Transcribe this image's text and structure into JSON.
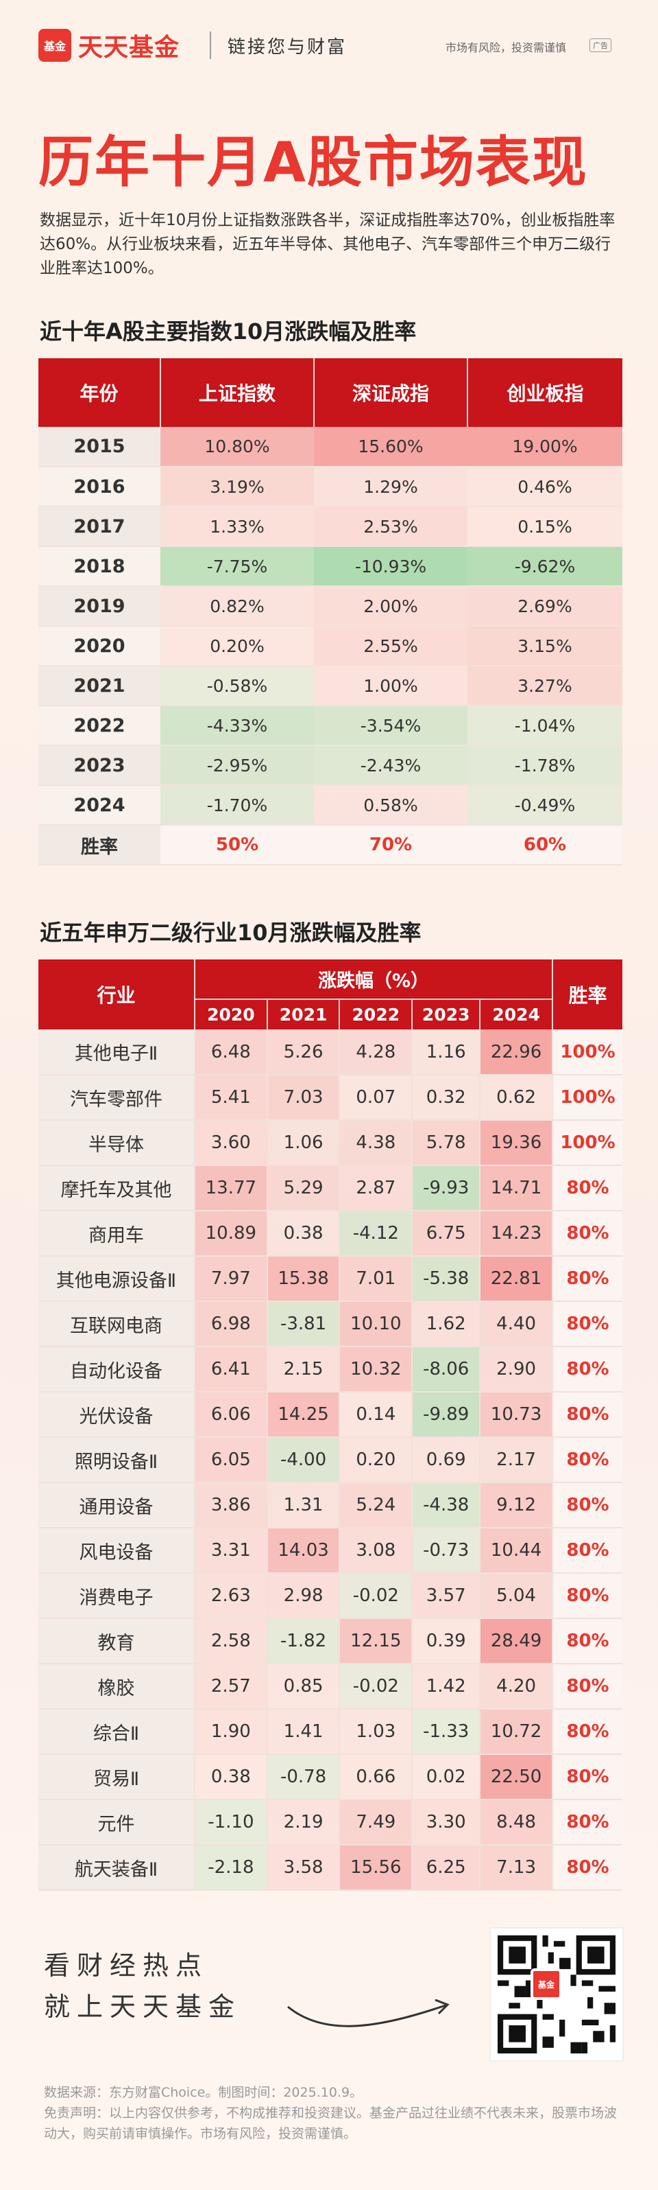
{
  "header": {
    "logo_badge": "基金",
    "logo_text": "天天基金",
    "slogan": "链接您与财富",
    "risk_text": "市场有风险，投资需谨慎",
    "ad_tag": "广告"
  },
  "title": "历年十月A股市场表现",
  "intro": "数据显示，近十年10月份上证指数涨跌各半，深证成指胜率达70%，创业板指胜率达60%。从行业板块来看，近五年半导体、其他电子、汽车零部件三个申万二级行业胜率达100%。",
  "table1": {
    "title": "近十年A股主要指数10月涨跌幅及胜率",
    "headers": [
      "年份",
      "上证指数",
      "深证成指",
      "创业板指"
    ],
    "rows": [
      {
        "year": "2015",
        "v": [
          "10.80%",
          "15.60%",
          "19.00%"
        ],
        "n": [
          10.8,
          15.6,
          19.0
        ]
      },
      {
        "year": "2016",
        "v": [
          "3.19%",
          "1.29%",
          "0.46%"
        ],
        "n": [
          3.19,
          1.29,
          0.46
        ]
      },
      {
        "year": "2017",
        "v": [
          "1.33%",
          "2.53%",
          "0.15%"
        ],
        "n": [
          1.33,
          2.53,
          0.15
        ]
      },
      {
        "year": "2018",
        "v": [
          "-7.75%",
          "-10.93%",
          "-9.62%"
        ],
        "n": [
          -7.75,
          -10.93,
          -9.62
        ]
      },
      {
        "year": "2019",
        "v": [
          "0.82%",
          "2.00%",
          "2.69%"
        ],
        "n": [
          0.82,
          2.0,
          2.69
        ]
      },
      {
        "year": "2020",
        "v": [
          "0.20%",
          "2.55%",
          "3.15%"
        ],
        "n": [
          0.2,
          2.55,
          3.15
        ]
      },
      {
        "year": "2021",
        "v": [
          "-0.58%",
          "1.00%",
          "3.27%"
        ],
        "n": [
          -0.58,
          1.0,
          3.27
        ]
      },
      {
        "year": "2022",
        "v": [
          "-4.33%",
          "-3.54%",
          "-1.04%"
        ],
        "n": [
          -4.33,
          -3.54,
          -1.04
        ]
      },
      {
        "year": "2023",
        "v": [
          "-2.95%",
          "-2.43%",
          "-1.78%"
        ],
        "n": [
          -2.95,
          -2.43,
          -1.78
        ]
      },
      {
        "year": "2024",
        "v": [
          "-1.70%",
          "0.58%",
          "-0.49%"
        ],
        "n": [
          -1.7,
          0.58,
          -0.49
        ]
      }
    ],
    "win_label": "胜率",
    "win": [
      "50%",
      "70%",
      "60%"
    ]
  },
  "table2": {
    "title": "近五年申万二级行业10月涨跌幅及胜率",
    "col_industry": "行业",
    "col_change": "涨跌幅（%）",
    "col_win": "胜率",
    "years": [
      "2020",
      "2021",
      "2022",
      "2023",
      "2024"
    ],
    "rows": [
      {
        "name": "其他电子Ⅱ",
        "v": [
          6.48,
          5.26,
          4.28,
          1.16,
          22.96
        ],
        "win": "100%"
      },
      {
        "name": "汽车零部件",
        "v": [
          5.41,
          7.03,
          0.07,
          0.32,
          0.62
        ],
        "win": "100%"
      },
      {
        "name": "半导体",
        "v": [
          3.6,
          1.06,
          4.38,
          5.78,
          19.36
        ],
        "win": "100%"
      },
      {
        "name": "摩托车及其他",
        "v": [
          13.77,
          5.29,
          2.87,
          -9.93,
          14.71
        ],
        "win": "80%"
      },
      {
        "name": "商用车",
        "v": [
          10.89,
          0.38,
          -4.12,
          6.75,
          14.23
        ],
        "win": "80%"
      },
      {
        "name": "其他电源设备Ⅱ",
        "v": [
          7.97,
          15.38,
          7.01,
          -5.38,
          22.81
        ],
        "win": "80%"
      },
      {
        "name": "互联网电商",
        "v": [
          6.98,
          -3.81,
          10.1,
          1.62,
          4.4
        ],
        "win": "80%"
      },
      {
        "name": "自动化设备",
        "v": [
          6.41,
          2.15,
          10.32,
          -8.06,
          2.9
        ],
        "win": "80%"
      },
      {
        "name": "光伏设备",
        "v": [
          6.06,
          14.25,
          0.14,
          -9.89,
          10.73
        ],
        "win": "80%"
      },
      {
        "name": "照明设备Ⅱ",
        "v": [
          6.05,
          -4.0,
          0.2,
          0.69,
          2.17
        ],
        "win": "80%"
      },
      {
        "name": "通用设备",
        "v": [
          3.86,
          1.31,
          5.24,
          -4.38,
          9.12
        ],
        "win": "80%"
      },
      {
        "name": "风电设备",
        "v": [
          3.31,
          14.03,
          3.08,
          -0.73,
          10.44
        ],
        "win": "80%"
      },
      {
        "name": "消费电子",
        "v": [
          2.63,
          2.98,
          -0.02,
          3.57,
          5.04
        ],
        "win": "80%"
      },
      {
        "name": "教育",
        "v": [
          2.58,
          -1.82,
          12.15,
          0.39,
          28.49
        ],
        "win": "80%"
      },
      {
        "name": "橡胶",
        "v": [
          2.57,
          0.85,
          -0.02,
          1.42,
          4.2
        ],
        "win": "80%"
      },
      {
        "name": "综合Ⅱ",
        "v": [
          1.9,
          1.41,
          1.03,
          -1.33,
          10.72
        ],
        "win": "80%"
      },
      {
        "name": "贸易Ⅱ",
        "v": [
          0.38,
          -0.78,
          0.66,
          0.02,
          22.5
        ],
        "win": "80%"
      },
      {
        "name": "元件",
        "v": [
          -1.1,
          2.19,
          7.49,
          3.3,
          8.48
        ],
        "win": "80%"
      },
      {
        "name": "航天装备Ⅱ",
        "v": [
          -2.18,
          3.58,
          15.56,
          6.25,
          7.13
        ],
        "win": "80%"
      }
    ]
  },
  "footer": {
    "slogan_line1": "看财经热点",
    "slogan_line2": "就上天天基金",
    "qr_badge": "基金",
    "source": "数据来源：东方财富Choice。制图时间：2025.10.9。",
    "disclaimer": "免责声明：以上内容仅供参考，不构成推荐和投资建议。基金产品过往业绩不代表未来，股票市场波动大，购买前请审慎操作。市场有风险，投资需谨慎。"
  },
  "colors": {
    "brand_red": "#e8382f",
    "header_red": "#c8141b",
    "up": "#f6a6a6",
    "down": "#7fd08f"
  }
}
